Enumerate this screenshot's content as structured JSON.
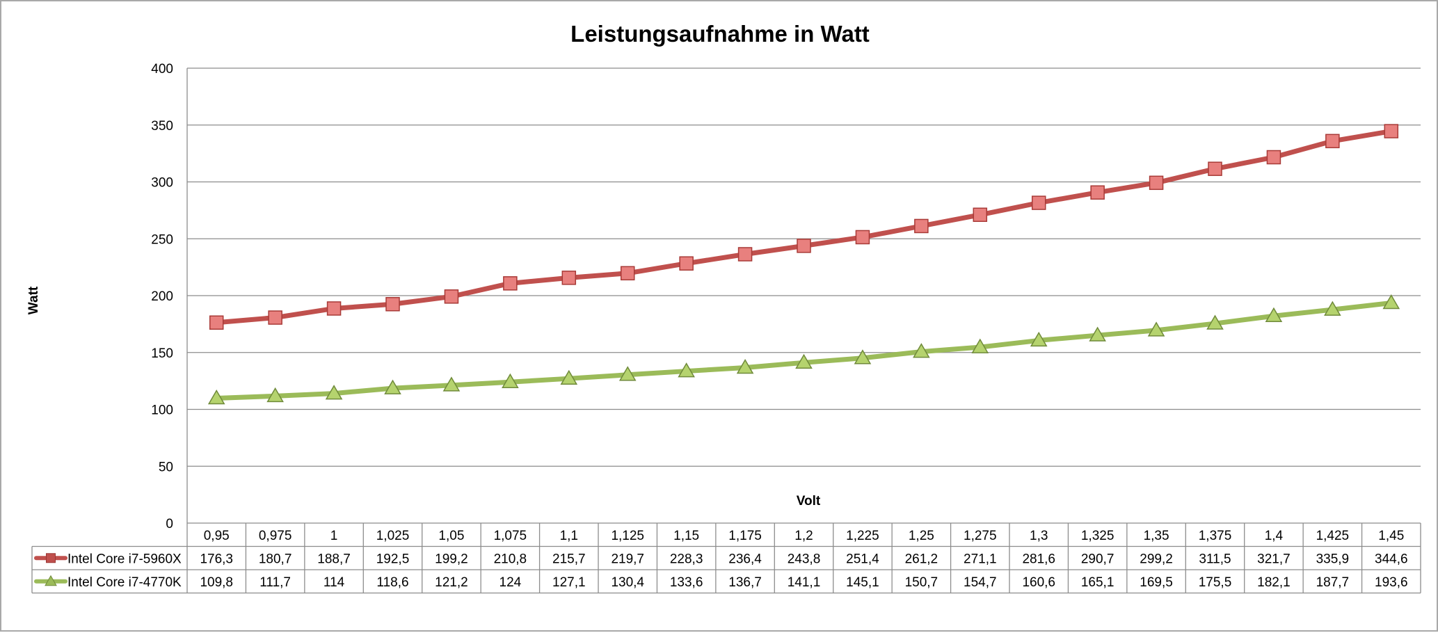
{
  "chart_data": {
    "type": "line",
    "title": "Leistungsaufnahme in Watt",
    "xlabel": "Volt",
    "ylabel": "Watt",
    "ylim": [
      0,
      400
    ],
    "yticks": [
      "0",
      "50",
      "100",
      "150",
      "200",
      "250",
      "300",
      "350",
      "400"
    ],
    "grid": true,
    "legend": "data-table",
    "categories": [
      "0,95",
      "0,975",
      "1",
      "1,025",
      "1,05",
      "1,075",
      "1,1",
      "1,125",
      "1,15",
      "1,175",
      "1,2",
      "1,225",
      "1,25",
      "1,275",
      "1,3",
      "1,325",
      "1,35",
      "1,375",
      "1,4",
      "1,425",
      "1,45"
    ],
    "series": [
      {
        "name": "Intel Core i7-5960X",
        "color": "#c0504d",
        "marker": "square",
        "values": [
          176.3,
          180.7,
          188.7,
          192.5,
          199.2,
          210.8,
          215.7,
          219.7,
          228.3,
          236.4,
          243.8,
          251.4,
          261.2,
          271.1,
          281.6,
          290.7,
          299.2,
          311.5,
          321.7,
          335.9,
          344.6
        ],
        "labels": [
          "176,3",
          "180,7",
          "188,7",
          "192,5",
          "199,2",
          "210,8",
          "215,7",
          "219,7",
          "228,3",
          "236,4",
          "243,8",
          "251,4",
          "261,2",
          "271,1",
          "281,6",
          "290,7",
          "299,2",
          "311,5",
          "321,7",
          "335,9",
          "344,6"
        ]
      },
      {
        "name": "Intel Core i7-4770K",
        "color": "#9bbb59",
        "marker": "triangle",
        "values": [
          109.8,
          111.7,
          114,
          118.6,
          121.2,
          124,
          127.1,
          130.4,
          133.6,
          136.7,
          141.1,
          145.1,
          150.7,
          154.7,
          160.6,
          165.1,
          169.5,
          175.5,
          182.1,
          187.7,
          193.6
        ],
        "labels": [
          "109,8",
          "111,7",
          "114",
          "118,6",
          "121,2",
          "124",
          "127,1",
          "130,4",
          "133,6",
          "136,7",
          "141,1",
          "145,1",
          "150,7",
          "154,7",
          "160,6",
          "165,1",
          "169,5",
          "175,5",
          "182,1",
          "187,7",
          "193,6"
        ]
      }
    ]
  }
}
